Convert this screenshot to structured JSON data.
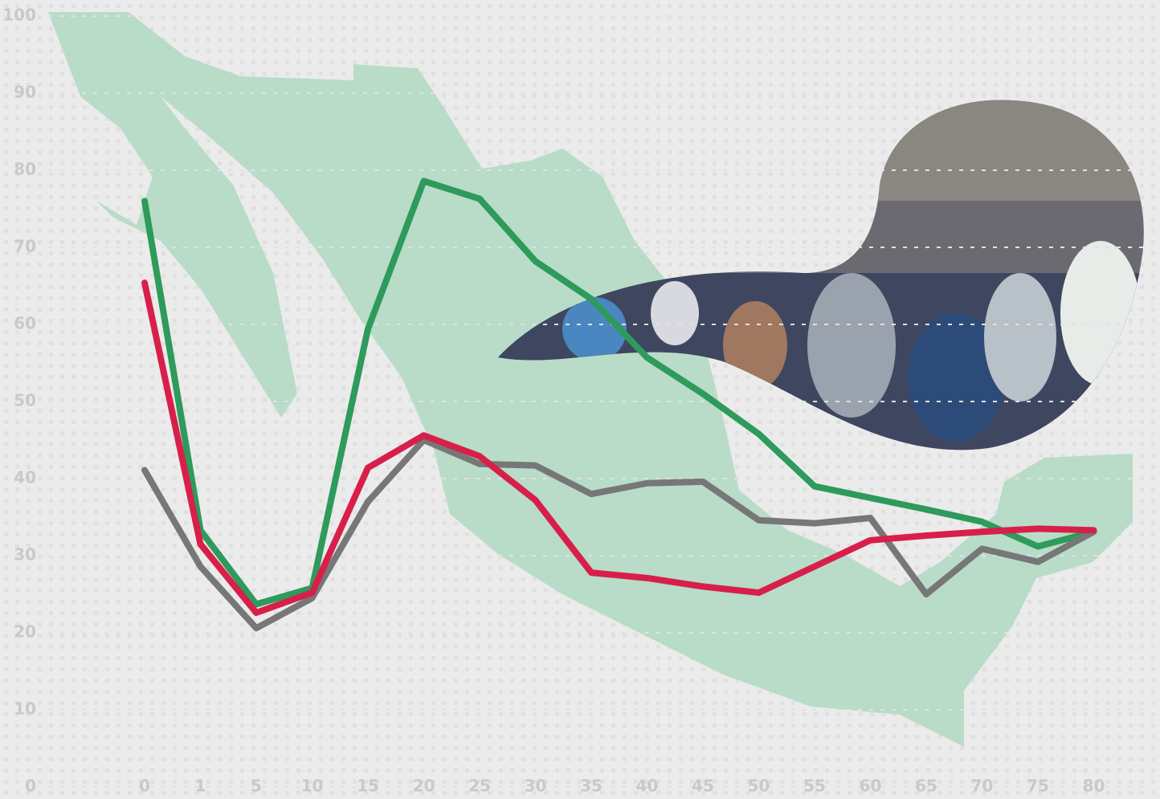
{
  "chart_data": {
    "type": "line",
    "categories": [
      "0",
      "1",
      "5",
      "10",
      "15",
      "20",
      "25",
      "30",
      "35",
      "40",
      "45",
      "50",
      "55",
      "60",
      "65",
      "70",
      "75",
      "80"
    ],
    "series": [
      {
        "color": "#2e9a5c",
        "values": [
          76,
          33.3,
          23.7,
          25.8,
          59.4,
          78.6,
          76.3,
          68.2,
          63.3,
          55.7,
          51,
          45.8,
          39,
          37.5,
          36,
          34.4,
          31.2,
          33.1
        ]
      },
      {
        "color": "#777777",
        "values": [
          41.1,
          28.6,
          20.6,
          24.5,
          37,
          45,
          41.9,
          41.7,
          38,
          39.4,
          39.6,
          34.6,
          34.2,
          34.9,
          25,
          30.9,
          29.2,
          33.1
        ]
      },
      {
        "color": "#d81f4a",
        "values": [
          65.4,
          31.5,
          22.6,
          25.2,
          41.4,
          45.6,
          42.9,
          37.2,
          27.8,
          27.1,
          26,
          25.2,
          28.6,
          32,
          32.6,
          33.1,
          33.5,
          33.3
        ]
      }
    ],
    "ylim": [
      0,
      100
    ],
    "yticks": [
      0,
      10,
      20,
      30,
      40,
      50,
      60,
      70,
      80,
      90,
      100
    ],
    "grid": true
  }
}
